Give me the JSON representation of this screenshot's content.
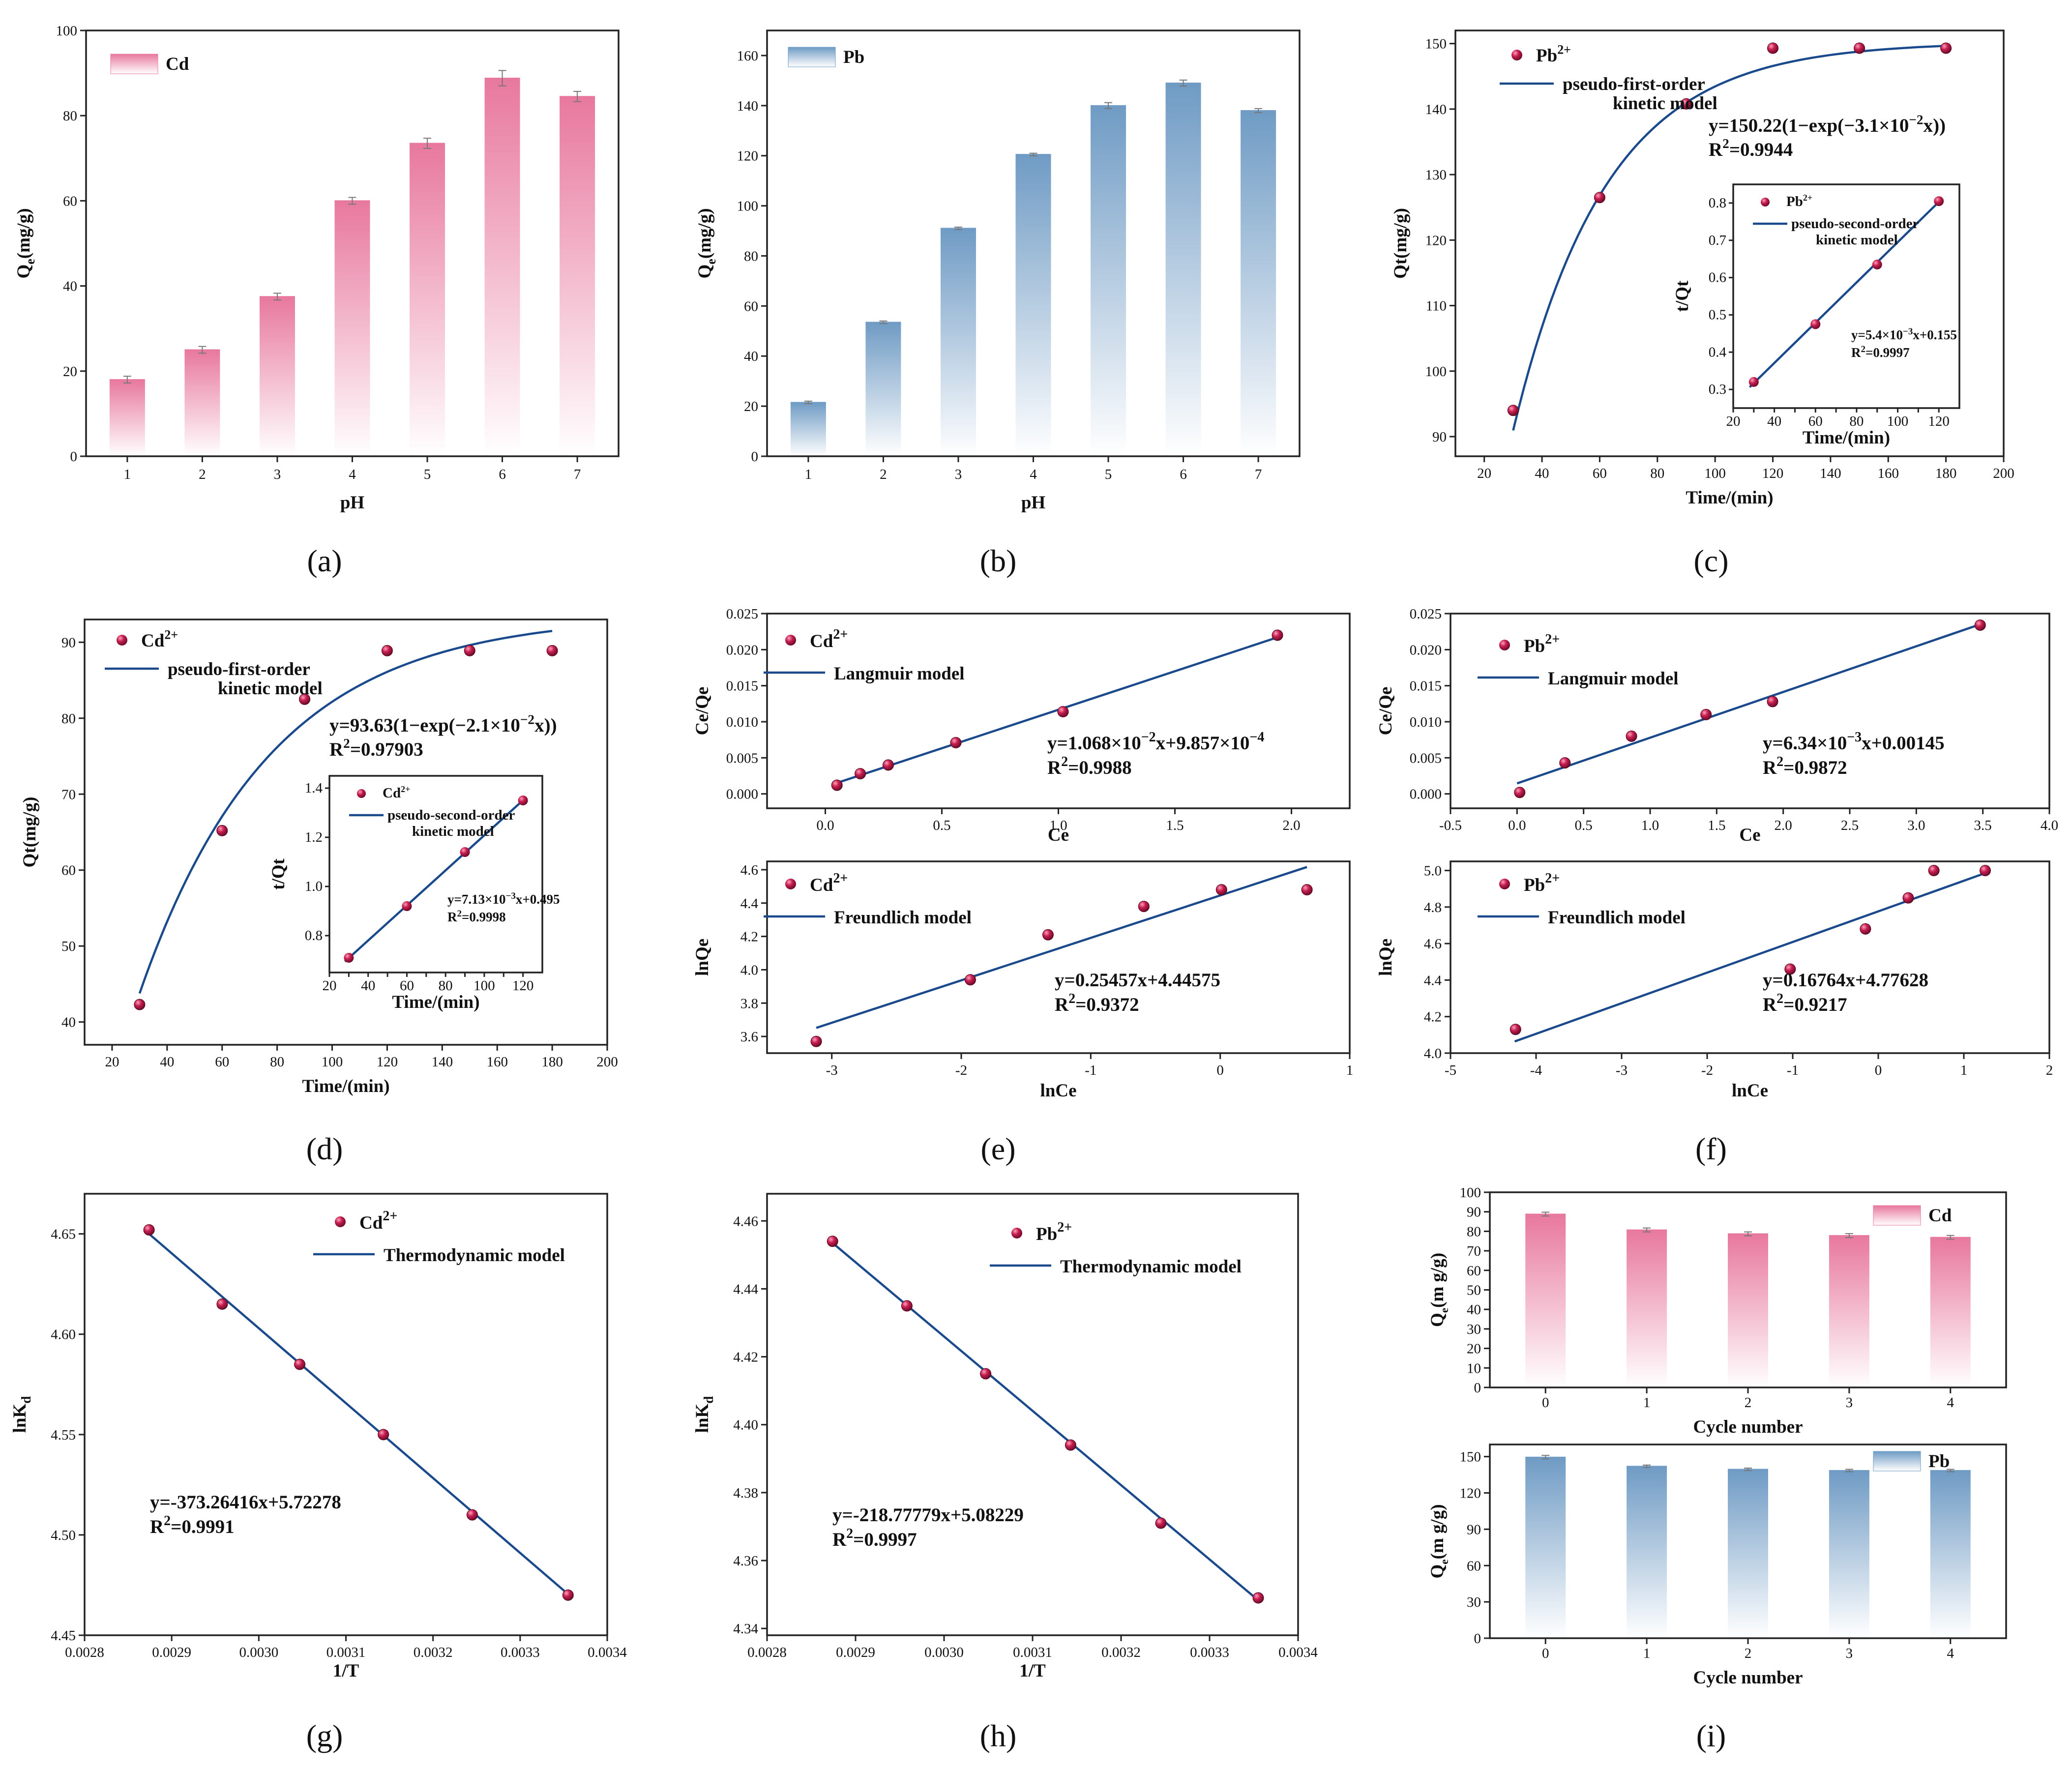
{
  "figure": {
    "panel_labels": [
      "(a)",
      "(b)",
      "(c)",
      "(d)",
      "(e)",
      "(f)",
      "(g)",
      "(h)",
      "(i)"
    ],
    "colors": {
      "cd_bar": "#e8789e",
      "pb_bar": "#6f9bc4",
      "fit_line": "#1a4a8c",
      "marker": "#c51e4f"
    }
  },
  "chart_data": [
    {
      "id": "a",
      "type": "bar",
      "series_name": "Cd",
      "categories": [
        "1",
        "2",
        "3",
        "4",
        "5",
        "6",
        "7"
      ],
      "values": [
        18,
        25,
        37.5,
        60,
        73.5,
        88.8,
        84.5
      ],
      "errors": [
        0.8,
        0.8,
        0.8,
        0.8,
        1.2,
        1.8,
        1.2
      ],
      "xlabel": "pH",
      "ylabel_main": "Q",
      "ylabel_sub": "e",
      "ylabel_rest": "(mg/g)",
      "ylim": [
        0,
        100
      ],
      "yticks": [
        "0",
        "20",
        "40",
        "60",
        "80",
        "100"
      ]
    },
    {
      "id": "b",
      "type": "bar",
      "series_name": "Pb",
      "categories": [
        "1",
        "2",
        "3",
        "4",
        "5",
        "6",
        "7"
      ],
      "values": [
        21.5,
        53.5,
        91,
        120.5,
        140,
        149,
        138
      ],
      "errors": [
        0.5,
        0.5,
        0.5,
        0.5,
        1.2,
        1.2,
        0.8
      ],
      "xlabel": "pH",
      "ylabel_main": "Q",
      "ylabel_sub": "e",
      "ylabel_rest": "(mg/g)",
      "ylim": [
        0,
        170
      ],
      "yticks": [
        "0",
        "20",
        "40",
        "60",
        "80",
        "100",
        "120",
        "140",
        "160"
      ]
    },
    {
      "id": "c",
      "type": "scatter",
      "ion": "Pb",
      "x": [
        30,
        60,
        90,
        120,
        150,
        180
      ],
      "y": [
        94,
        126.5,
        140.8,
        149.3,
        149.3,
        149.3
      ],
      "xlim": [
        10,
        200
      ],
      "ylim": [
        87,
        152
      ],
      "xticks": [
        "20",
        "40",
        "60",
        "80",
        "100",
        "120",
        "140",
        "160",
        "180",
        "200"
      ],
      "yticks": [
        "90",
        "100",
        "110",
        "120",
        "130",
        "140",
        "150"
      ],
      "xlabel": "Time/(min)",
      "ylabel": "Qt(mg/g)",
      "legend_point": "Pb",
      "legend_line_1": "pseudo-first-order",
      "legend_line_2": "kinetic model",
      "fit": {
        "qe": 150.22,
        "k": 0.031
      },
      "eq_text": "y=150.22(1−exp(−3.1×10",
      "eq_exp": "−2",
      "eq_tail": "x))",
      "r2_text": "R",
      "r2_value": "=0.9944",
      "inset": {
        "x": [
          30,
          60,
          90,
          120
        ],
        "y": [
          0.32,
          0.475,
          0.635,
          0.805
        ],
        "xlim": [
          20,
          130
        ],
        "ylim": [
          0.25,
          0.85
        ],
        "xticks": [
          "20",
          "30",
          "40",
          "50",
          "60",
          "70",
          "80",
          "90",
          "100",
          "110",
          "120"
        ],
        "yticks": [
          "0.3",
          "0.4",
          "0.5",
          "0.6",
          "0.7",
          "0.8"
        ],
        "xlabel": "Time/(min)",
        "ylabel": "t/Qt",
        "legend_point": "Pb",
        "legend_line_1": "pseudo-second-order",
        "legend_line_2": "kinetic model",
        "fit": {
          "slope": 0.0054,
          "intercept": 0.155
        },
        "eq_text": "y=5.4×10",
        "eq_exp": "−3",
        "eq_tail": "x+0.155",
        "r2_text": "R",
        "r2_value": "=0.9997"
      }
    },
    {
      "id": "d",
      "type": "scatter",
      "ion": "Cd",
      "x": [
        30,
        60,
        90,
        120,
        150,
        180
      ],
      "y": [
        42.3,
        65.2,
        82.5,
        88.9,
        88.9,
        88.9
      ],
      "xlim": [
        10,
        200
      ],
      "ylim": [
        37,
        93
      ],
      "xticks": [
        "20",
        "40",
        "60",
        "80",
        "100",
        "120",
        "140",
        "160",
        "180",
        "200"
      ],
      "yticks": [
        "40",
        "50",
        "60",
        "70",
        "80",
        "90"
      ],
      "xlabel": "Time/(min)",
      "ylabel": "Qt(mg/g)",
      "legend_point": "Cd",
      "legend_line_1": "pseudo-first-order",
      "legend_line_2": "kinetic model",
      "fit": {
        "qe": 93.63,
        "k": 0.021
      },
      "eq_text": "y=93.63(1−exp(−2.1×10",
      "eq_exp": "−2",
      "eq_tail": "x))",
      "r2_text": "R",
      "r2_value": "=0.97903",
      "inset": {
        "x": [
          30,
          60,
          90,
          120
        ],
        "y": [
          0.71,
          0.92,
          1.14,
          1.35
        ],
        "xlim": [
          20,
          130
        ],
        "ylim": [
          0.65,
          1.45
        ],
        "xticks": [
          "20",
          "30",
          "40",
          "50",
          "60",
          "70",
          "80",
          "90",
          "100",
          "110",
          "120"
        ],
        "yticks": [
          "0.8",
          "1.0",
          "1.2",
          "1.4"
        ],
        "xlabel": "Time/(min)",
        "ylabel": "t/Qt",
        "legend_point": "Cd",
        "legend_line_1": "pseudo-second-order",
        "legend_line_2": "kinetic model",
        "fit": {
          "slope": 0.00713,
          "intercept": 0.495
        },
        "eq_text": "y=7.13×10",
        "eq_exp": "−3",
        "eq_tail": "x+0.495",
        "r2_text": "R",
        "r2_value": "=0.9998"
      }
    },
    {
      "id": "e_top",
      "type": "scatter",
      "ion": "Cd",
      "x": [
        0.05,
        0.15,
        0.27,
        0.56,
        1.02,
        1.94
      ],
      "y": [
        0.0012,
        0.0028,
        0.004,
        0.0071,
        0.0114,
        0.022
      ],
      "xlim": [
        -0.25,
        2.25
      ],
      "ylim": [
        -0.002,
        0.025
      ],
      "xticks": [
        "0.0",
        "0.5",
        "1.0",
        "1.5",
        "2.0"
      ],
      "yticks": [
        "0.000",
        "0.005",
        "0.010",
        "0.015",
        "0.020",
        "0.025"
      ],
      "xlabel": "Ce",
      "ylabel": "Ce/Qe",
      "legend_point": "Cd",
      "legend_line_1": "Langmuir model",
      "fit": {
        "slope": 0.01068,
        "intercept": 0.0009857
      },
      "eq_text": "y=1.068×10",
      "eq_exp": "−2",
      "eq_tail": "x+9.857×10",
      "eq_exp2": "−4",
      "r2_text": "R",
      "r2_value": "=0.9988"
    },
    {
      "id": "e_bottom",
      "type": "scatter",
      "ion": "Cd",
      "x": [
        -3.12,
        -1.93,
        -1.33,
        -0.59,
        0.01,
        0.67
      ],
      "y": [
        3.57,
        3.94,
        4.21,
        4.38,
        4.48,
        4.48
      ],
      "xlim": [
        -3.5,
        1
      ],
      "ylim": [
        3.5,
        4.65
      ],
      "xticks": [
        "-3",
        "-2",
        "-1",
        "0",
        "1"
      ],
      "yticks": [
        "3.6",
        "3.8",
        "4.0",
        "4.2",
        "4.4",
        "4.6"
      ],
      "xlabel": "lnCe",
      "ylabel": "lnQe",
      "legend_point": "Cd",
      "legend_line_1": "Freundlich model",
      "fit": {
        "slope": 0.25457,
        "intercept": 4.44575
      },
      "eq_text": "y=0.25457x+4.44575",
      "r2_text": "R",
      "r2_value": "=0.9372"
    },
    {
      "id": "f_top",
      "type": "scatter",
      "ion": "Pb",
      "x": [
        0.02,
        0.36,
        0.86,
        1.42,
        1.92,
        3.48
      ],
      "y": [
        0.0002,
        0.0043,
        0.008,
        0.011,
        0.0128,
        0.0234
      ],
      "xlim": [
        -0.5,
        4.0
      ],
      "ylim": [
        -0.002,
        0.025
      ],
      "xticks": [
        "-0.5",
        "0.0",
        "0.5",
        "1.0",
        "1.5",
        "2.0",
        "2.5",
        "3.0",
        "3.5",
        "4.0"
      ],
      "yticks": [
        "0.000",
        "0.005",
        "0.010",
        "0.015",
        "0.020",
        "0.025"
      ],
      "xlabel": "Ce",
      "ylabel": "Ce/Qe",
      "legend_point": "Pb",
      "legend_line_1": "Langmuir model",
      "fit": {
        "slope": 0.00634,
        "intercept": 0.00145
      },
      "eq_text": "y=6.34×10",
      "eq_exp": "−3",
      "eq_tail": "x+0.00145",
      "r2_text": "R",
      "r2_value": "=0.9872"
    },
    {
      "id": "f_bottom",
      "type": "scatter",
      "ion": "Pb",
      "x": [
        -4.24,
        -1.03,
        -0.15,
        0.35,
        0.65,
        1.25
      ],
      "y": [
        4.13,
        4.46,
        4.68,
        4.85,
        5.0,
        5.0
      ],
      "xlim": [
        -5,
        2
      ],
      "ylim": [
        4.0,
        5.05
      ],
      "xticks": [
        "-5",
        "-4",
        "-3",
        "-2",
        "-1",
        "0",
        "1",
        "2"
      ],
      "yticks": [
        "4.0",
        "4.2",
        "4.4",
        "4.6",
        "4.8",
        "5.0"
      ],
      "xlabel": "lnCe",
      "ylabel": "lnQe",
      "legend_point": "Pb",
      "legend_line_1": "Freundlich model",
      "fit": {
        "slope": 0.16764,
        "intercept": 4.77628
      },
      "eq_text": "y=0.16764x+4.77628",
      "r2_text": "R",
      "r2_value": "=0.9217"
    },
    {
      "id": "g",
      "type": "scatter",
      "ion": "Cd",
      "x": [
        0.002874,
        0.002958,
        0.003047,
        0.003143,
        0.003245,
        0.003355
      ],
      "y": [
        4.652,
        4.615,
        4.585,
        4.55,
        4.51,
        4.47
      ],
      "xlim": [
        0.0028,
        0.0034
      ],
      "ylim": [
        4.45,
        4.67
      ],
      "xticks": [
        "0.0028",
        "0.0029",
        "0.0030",
        "0.0031",
        "0.0032",
        "0.0033",
        "0.0034"
      ],
      "yticks": [
        "4.45",
        "4.50",
        "4.55",
        "4.60",
        "4.65"
      ],
      "xlabel": "1/T",
      "ylabel_main": "lnK",
      "ylabel_sub": "d",
      "legend_point": "Cd",
      "legend_line_1": "Thermodynamic model",
      "fit": {
        "slope": -373.26416,
        "intercept": 5.72278
      },
      "eq_text": "y=-373.26416x+5.72278",
      "r2_text": "R",
      "r2_value": "=0.9991"
    },
    {
      "id": "h",
      "type": "scatter",
      "ion": "Pb",
      "x": [
        0.002874,
        0.002958,
        0.003047,
        0.003143,
        0.003245,
        0.003355
      ],
      "y": [
        4.454,
        4.435,
        4.415,
        4.394,
        4.371,
        4.349
      ],
      "xlim": [
        0.0028,
        0.0034
      ],
      "ylim": [
        4.338,
        4.468
      ],
      "xticks": [
        "0.0028",
        "0.0029",
        "0.0030",
        "0.0031",
        "0.0032",
        "0.0033",
        "0.0034"
      ],
      "yticks": [
        "4.34",
        "4.36",
        "4.38",
        "4.40",
        "4.42",
        "4.44",
        "4.46"
      ],
      "xlabel": "1/T",
      "ylabel_main": "lnK",
      "ylabel_sub": "d",
      "legend_point": "Pb",
      "legend_line_1": "Thermodynamic model",
      "fit": {
        "slope": -218.77779,
        "intercept": 5.08229
      },
      "eq_text": "y=-218.77779x+5.08229",
      "r2_text": "R",
      "r2_value": "=0.9997"
    },
    {
      "id": "i_top",
      "type": "bar",
      "series_name": "Cd",
      "categories": [
        "0",
        "1",
        "2",
        "3",
        "4"
      ],
      "values": [
        88.8,
        80.7,
        78.7,
        77.8,
        76.9
      ],
      "errors": [
        1.0,
        1.0,
        1.0,
        1.0,
        1.0
      ],
      "xlabel": "Cycle number",
      "ylabel_main": "Q",
      "ylabel_sub": "e",
      "ylabel_rest": "(m g/g)",
      "ylim": [
        0,
        100
      ],
      "yticks": [
        "0",
        "10",
        "20",
        "30",
        "40",
        "50",
        "60",
        "70",
        "80",
        "90",
        "100"
      ]
    },
    {
      "id": "i_bottom",
      "type": "bar",
      "series_name": "Pb",
      "categories": [
        "0",
        "1",
        "2",
        "3",
        "4"
      ],
      "values": [
        149.5,
        142,
        139.5,
        138.5,
        138.5
      ],
      "errors": [
        1.5,
        1.0,
        1.0,
        1.0,
        1.0
      ],
      "xlabel": "Cycle number",
      "ylabel_main": "Q",
      "ylabel_sub": "e",
      "ylabel_rest": "(m g/g)",
      "ylim": [
        0,
        160
      ],
      "yticks": [
        "0",
        "30",
        "60",
        "90",
        "120",
        "150"
      ]
    }
  ]
}
